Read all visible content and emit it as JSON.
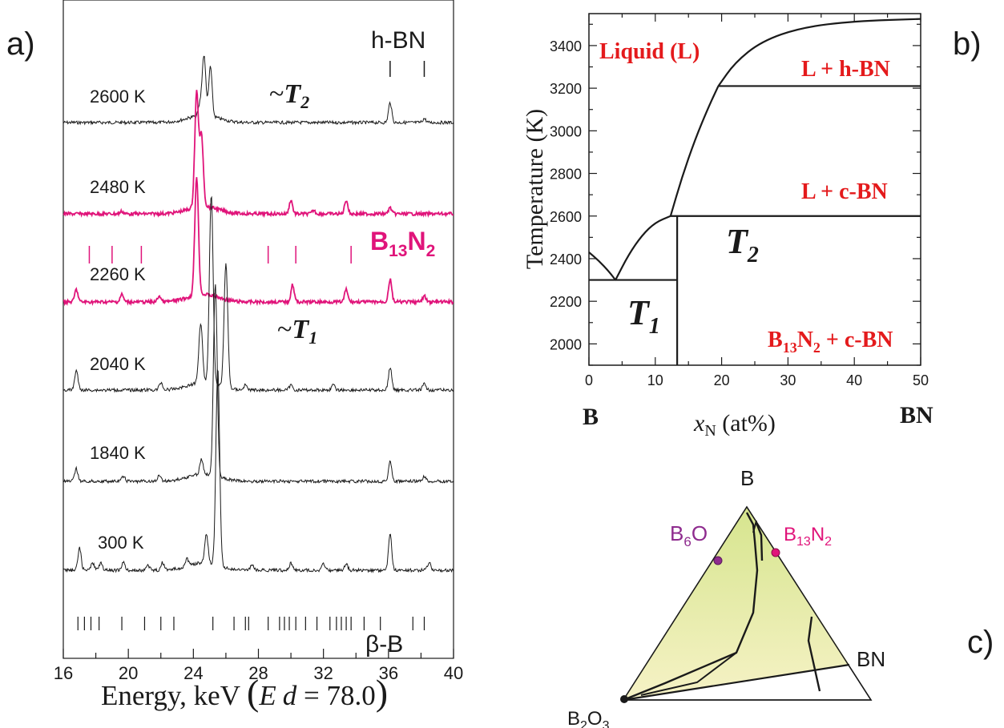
{
  "panels": {
    "a": "a)",
    "b": "b)",
    "c": "c)"
  },
  "colors": {
    "black": "#1a1a1a",
    "magenta": "#e0147a",
    "red": "#e41a1c",
    "purple": "#8e2b8e",
    "triangle_fill_top": "#dbe89c",
    "triangle_fill_bottom": "#f3f0c2"
  },
  "chart_data": [
    {
      "type": "line",
      "panel": "a)",
      "xlabel_main": "Energy, keV",
      "xlabel_extra_open": "(",
      "xlabel_extra_E": "E",
      "xlabel_extra_d": "d",
      "xlabel_extra_value": " = 78.0",
      "xlabel_extra_close": ")",
      "xlim": [
        16,
        40
      ],
      "xticks": [
        16,
        20,
        24,
        28,
        32,
        36,
        40
      ],
      "series": [
        {
          "name": "2600 K",
          "color": "#1a1a1a",
          "baseline": 0.0,
          "peaks": [
            [
              24.4,
              0.18
            ],
            [
              24.65,
              1.2
            ],
            [
              25.05,
              1.0
            ],
            [
              36.1,
              0.4
            ],
            [
              38.2,
              0.08
            ]
          ]
        },
        {
          "name": "2480 K",
          "color": "#e0147a",
          "baseline": 0.0,
          "peaks": [
            [
              19.6,
              0.05
            ],
            [
              24.2,
              2.3
            ],
            [
              24.5,
              1.4
            ],
            [
              30.0,
              0.28
            ],
            [
              31.4,
              0.07
            ],
            [
              33.4,
              0.28
            ],
            [
              36.1,
              0.12
            ]
          ]
        },
        {
          "name": "2260 K",
          "color": "#e0147a",
          "baseline": 0.0,
          "peaks": [
            [
              16.8,
              0.25
            ],
            [
              19.6,
              0.15
            ],
            [
              21.9,
              0.12
            ],
            [
              24.2,
              2.4
            ],
            [
              30.1,
              0.35
            ],
            [
              33.4,
              0.25
            ],
            [
              36.1,
              0.45
            ],
            [
              38.2,
              0.12
            ]
          ]
        },
        {
          "name": "2040 K",
          "color": "#1a1a1a",
          "baseline": 0.0,
          "peaks": [
            [
              16.8,
              0.4
            ],
            [
              22.0,
              0.15
            ],
            [
              24.45,
              1.2
            ],
            [
              25.1,
              3.8
            ],
            [
              26.0,
              2.5
            ],
            [
              27.2,
              0.1
            ],
            [
              30.0,
              0.1
            ],
            [
              32.6,
              0.1
            ],
            [
              36.1,
              0.45
            ],
            [
              38.2,
              0.12
            ]
          ]
        },
        {
          "name": "1840 K",
          "color": "#1a1a1a",
          "baseline": 0.0,
          "peaks": [
            [
              16.8,
              0.25
            ],
            [
              19.7,
              0.1
            ],
            [
              21.9,
              0.12
            ],
            [
              24.5,
              0.3
            ],
            [
              25.35,
              3.9
            ],
            [
              36.1,
              0.4
            ],
            [
              38.2,
              0.1
            ]
          ]
        },
        {
          "name": "300 K",
          "color": "#1a1a1a",
          "baseline": 0.0,
          "peaks": [
            [
              17.0,
              0.45
            ],
            [
              17.8,
              0.15
            ],
            [
              18.3,
              0.15
            ],
            [
              19.7,
              0.15
            ],
            [
              21.2,
              0.1
            ],
            [
              22.1,
              0.15
            ],
            [
              23.6,
              0.15
            ],
            [
              24.8,
              0.6
            ],
            [
              25.5,
              4.0
            ],
            [
              27.6,
              0.1
            ],
            [
              30.0,
              0.15
            ],
            [
              32.0,
              0.12
            ],
            [
              33.4,
              0.12
            ],
            [
              36.1,
              0.75
            ],
            [
              38.5,
              0.15
            ]
          ]
        }
      ],
      "annotations": {
        "hbn": "h-BN",
        "b13n2_main": "B",
        "b13n2_sub1": "13",
        "b13n2_mid": "N",
        "b13n2_sub2": "2",
        "t2_prefix": "~",
        "t2_main": "T",
        "t2_sub": "2",
        "t1_prefix": "~",
        "t1_main": "T",
        "t1_sub": "1",
        "beta_b": "β-B"
      },
      "hbn_ticks": [
        36.1,
        38.2
      ],
      "b13n2_ticks": [
        17.6,
        19.0,
        20.8,
        28.6,
        30.3,
        33.7
      ],
      "beta_b_ticks": [
        16.9,
        17.3,
        17.7,
        18.2,
        19.6,
        21.0,
        22.0,
        22.8,
        25.2,
        26.5,
        27.2,
        27.4,
        28.6,
        29.3,
        29.6,
        29.9,
        30.3,
        30.9,
        31.6,
        32.4,
        32.8,
        33.1,
        33.4,
        33.7,
        34.5,
        35.5,
        37.5,
        38.2
      ]
    },
    {
      "type": "line",
      "panel": "b)",
      "ylabel": "Temperature (K)",
      "xlabel_main": "x",
      "xlabel_sub": "N",
      "xlabel_unit": " (at%)",
      "xlim": [
        0,
        50
      ],
      "ylim": [
        1900,
        3550
      ],
      "xticks": [
        0,
        10,
        20,
        30,
        40,
        50
      ],
      "yticks": [
        2000,
        2200,
        2400,
        2600,
        2800,
        3000,
        3200,
        3400
      ],
      "end_left": "B",
      "end_right": "BN",
      "regions": {
        "liquid": "Liquid (L)",
        "l_hbn": "L + h-BN",
        "l_cbn": "L + c-BN",
        "b13n2_main": "B",
        "b13n2_sub1": "13",
        "b13n2_mid": "N",
        "b13n2_sub2": "2",
        "b13n2_rest": " + c-BN"
      },
      "t_labels": {
        "t_main": "T",
        "t1_sub": "1",
        "t2_sub": "2"
      },
      "lines": {
        "isotherm_hbn": [
          [
            19.5,
            3210
          ],
          [
            50,
            3210
          ]
        ],
        "isotherm_cbn": [
          [
            12.3,
            2600
          ],
          [
            50,
            2600
          ]
        ],
        "eutectic": [
          [
            0,
            2300
          ],
          [
            13.3,
            2300
          ]
        ],
        "compound": [
          [
            13.3,
            1900
          ],
          [
            13.3,
            2600
          ]
        ],
        "liquidus_left": [
          [
            0,
            2430
          ],
          [
            1.5,
            2390
          ],
          [
            3.0,
            2340
          ],
          [
            4.0,
            2300
          ]
        ],
        "liquidus_mid": [
          [
            4.0,
            2300
          ],
          [
            6,
            2420
          ],
          [
            8,
            2510
          ],
          [
            10,
            2570
          ],
          [
            12.3,
            2600
          ]
        ],
        "liquidus_right": [
          [
            12.3,
            2600
          ],
          [
            14,
            2780
          ],
          [
            16,
            2960
          ],
          [
            18,
            3110
          ],
          [
            19.5,
            3210
          ]
        ],
        "liquidus_top": [
          [
            19.5,
            3210
          ],
          [
            22,
            3320
          ],
          [
            26,
            3420
          ],
          [
            32,
            3485
          ],
          [
            40,
            3515
          ],
          [
            50,
            3525
          ]
        ]
      }
    }
  ],
  "ternary": {
    "panel": "c)",
    "apex_top": "B",
    "bn_label": "BN",
    "b2o3_main": "B",
    "b2o3_sub1": "2",
    "b2o3_mid": "O",
    "b2o3_sub2": "3",
    "b6o_main": "B",
    "b6o_sub": "6",
    "b6o_rest": "O",
    "b13n2_main": "B",
    "b13n2_sub1": "13",
    "b13n2_mid": "N",
    "b13n2_sub2": "2"
  }
}
